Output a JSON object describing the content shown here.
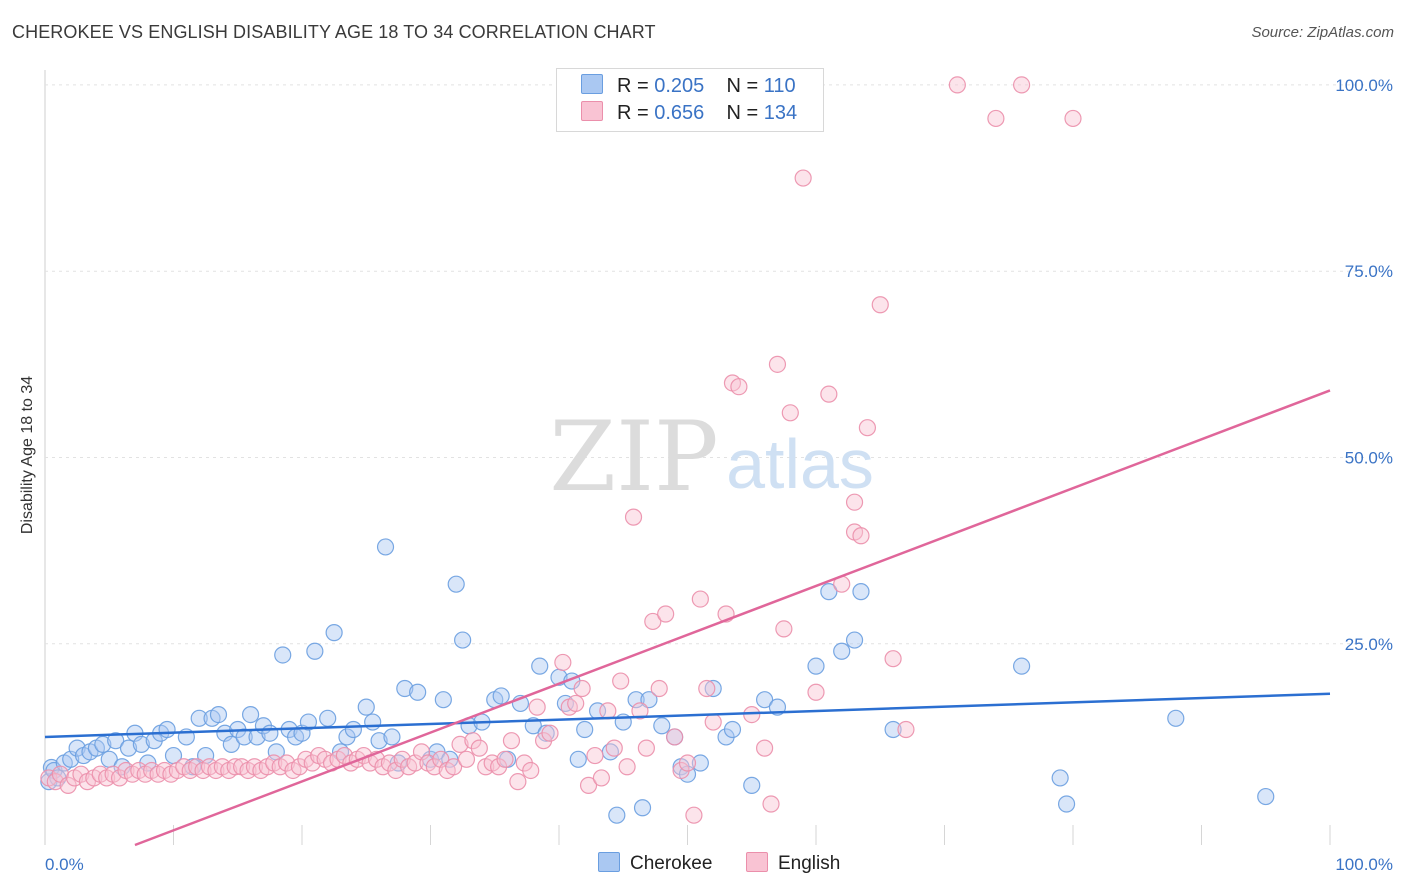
{
  "title": "CHEROKEE VS ENGLISH DISABILITY AGE 18 TO 34 CORRELATION CHART",
  "source": "Source: ZipAtlas.com",
  "watermark": {
    "zip": "ZIP",
    "atlas": "atlas"
  },
  "legend": {
    "r_label": "R =",
    "n_label": "N =",
    "rows": [
      {
        "r": "0.205",
        "n": "110",
        "fill": "#aac8f2",
        "stroke": "#6a9ee0"
      },
      {
        "r": "0.656",
        "n": "134",
        "fill": "#f9c3d3",
        "stroke": "#eb8fab"
      }
    ]
  },
  "bottom_legend": [
    "Cherokee",
    "English"
  ],
  "chart_data": {
    "type": "scatter",
    "title": "CHEROKEE VS ENGLISH DISABILITY AGE 18 TO 34 CORRELATION CHART",
    "xlabel": "",
    "ylabel": "Disability Age 18 to 34",
    "x_tick_labels": [
      "0.0%",
      "100.0%"
    ],
    "y_tick_labels": [
      "100.0%",
      "75.0%",
      "50.0%",
      "25.0%"
    ],
    "y_ticks": [
      100,
      75,
      50,
      25
    ],
    "xlim": [
      0,
      100
    ],
    "ylim": [
      -2,
      102
    ],
    "grid": true,
    "legend_position": "top-center",
    "series": [
      {
        "name": "Cherokee",
        "color": "#6a9ee0",
        "fill": "#aac8f2",
        "trend": {
          "x": [
            0,
            100
          ],
          "y": [
            12.5,
            18.3
          ]
        },
        "points": [
          [
            0.3,
            6.5
          ],
          [
            0.5,
            8.4
          ],
          [
            0.7,
            8.0
          ],
          [
            1,
            7
          ],
          [
            1.5,
            9
          ],
          [
            2,
            9.5
          ],
          [
            2.5,
            11
          ],
          [
            3,
            10
          ],
          [
            3.5,
            10.5
          ],
          [
            4,
            11
          ],
          [
            4.5,
            11.5
          ],
          [
            5,
            9.5
          ],
          [
            5.5,
            12
          ],
          [
            6,
            8.5
          ],
          [
            6.5,
            11
          ],
          [
            7,
            13
          ],
          [
            7.5,
            11.5
          ],
          [
            8,
            9
          ],
          [
            8.5,
            12
          ],
          [
            9,
            13
          ],
          [
            9.5,
            13.5
          ],
          [
            10,
            10
          ],
          [
            11,
            12.5
          ],
          [
            11.5,
            8.5
          ],
          [
            12,
            15
          ],
          [
            12.5,
            10
          ],
          [
            13,
            15
          ],
          [
            13.5,
            15.5
          ],
          [
            14,
            13
          ],
          [
            14.5,
            11.5
          ],
          [
            15,
            13.5
          ],
          [
            15.5,
            12.5
          ],
          [
            16,
            15.5
          ],
          [
            16.5,
            12.5
          ],
          [
            17,
            14
          ],
          [
            17.5,
            13
          ],
          [
            18,
            10.5
          ],
          [
            18.5,
            23.5
          ],
          [
            19,
            13.5
          ],
          [
            19.5,
            12.5
          ],
          [
            20,
            13
          ],
          [
            20.5,
            14.5
          ],
          [
            21,
            24
          ],
          [
            22,
            15
          ],
          [
            22.5,
            26.5
          ],
          [
            23,
            10.5
          ],
          [
            23.5,
            12.5
          ],
          [
            24,
            13.5
          ],
          [
            25,
            16.5
          ],
          [
            25.5,
            14.5
          ],
          [
            26,
            12
          ],
          [
            26.5,
            38
          ],
          [
            27,
            12.5
          ],
          [
            27.5,
            9
          ],
          [
            28,
            19
          ],
          [
            29,
            18.5
          ],
          [
            30,
            9.5
          ],
          [
            30.5,
            10.5
          ],
          [
            31,
            17.5
          ],
          [
            31.5,
            9.5
          ],
          [
            32,
            33
          ],
          [
            32.5,
            25.5
          ],
          [
            33,
            14
          ],
          [
            34,
            14.5
          ],
          [
            35,
            17.5
          ],
          [
            35.5,
            18
          ],
          [
            36,
            9.5
          ],
          [
            37,
            17
          ],
          [
            38,
            14
          ],
          [
            38.5,
            22
          ],
          [
            39,
            13
          ],
          [
            40,
            20.5
          ],
          [
            40.5,
            17
          ],
          [
            41,
            20
          ],
          [
            41.5,
            9.5
          ],
          [
            42,
            13.5
          ],
          [
            43,
            16
          ],
          [
            44,
            10.5
          ],
          [
            44.5,
            2
          ],
          [
            45,
            14.5
          ],
          [
            46,
            17.5
          ],
          [
            46.5,
            3
          ],
          [
            47,
            17.5
          ],
          [
            48,
            14
          ],
          [
            49,
            12.5
          ],
          [
            49.5,
            8.5
          ],
          [
            50,
            7.5
          ],
          [
            51,
            9
          ],
          [
            52,
            19
          ],
          [
            53,
            12.5
          ],
          [
            53.5,
            13.5
          ],
          [
            55,
            6
          ],
          [
            56,
            17.5
          ],
          [
            57,
            16.5
          ],
          [
            60,
            22
          ],
          [
            61,
            32
          ],
          [
            62,
            24
          ],
          [
            63,
            25.5
          ],
          [
            63.5,
            32
          ],
          [
            66,
            13.5
          ],
          [
            76,
            22
          ],
          [
            79,
            7
          ],
          [
            79.5,
            3.5
          ],
          [
            88,
            15
          ],
          [
            95,
            4.5
          ]
        ]
      },
      {
        "name": "English",
        "color": "#eb8fab",
        "fill": "#f9c3d3",
        "trend": {
          "x": [
            7,
            100
          ],
          "y": [
            -2,
            59
          ]
        },
        "points": [
          [
            0.3,
            7
          ],
          [
            0.8,
            6.5
          ],
          [
            1.2,
            7.5
          ],
          [
            1.8,
            6
          ],
          [
            2.3,
            7
          ],
          [
            2.8,
            7.5
          ],
          [
            3.3,
            6.5
          ],
          [
            3.8,
            7
          ],
          [
            4.3,
            7.5
          ],
          [
            4.8,
            7
          ],
          [
            5.3,
            7.5
          ],
          [
            5.8,
            7
          ],
          [
            6.3,
            8
          ],
          [
            6.8,
            7.5
          ],
          [
            7.3,
            8
          ],
          [
            7.8,
            7.5
          ],
          [
            8.3,
            8
          ],
          [
            8.8,
            7.5
          ],
          [
            9.3,
            8
          ],
          [
            9.8,
            7.5
          ],
          [
            10.3,
            8
          ],
          [
            10.8,
            8.5
          ],
          [
            11.3,
            8
          ],
          [
            11.8,
            8.5
          ],
          [
            12.3,
            8
          ],
          [
            12.8,
            8.5
          ],
          [
            13.3,
            8
          ],
          [
            13.8,
            8.5
          ],
          [
            14.3,
            8
          ],
          [
            14.8,
            8.5
          ],
          [
            15.3,
            8.5
          ],
          [
            15.8,
            8
          ],
          [
            16.3,
            8.5
          ],
          [
            16.8,
            8
          ],
          [
            17.3,
            8.5
          ],
          [
            17.8,
            9
          ],
          [
            18.3,
            8.5
          ],
          [
            18.8,
            9
          ],
          [
            19.3,
            8
          ],
          [
            19.8,
            8.5
          ],
          [
            20.3,
            9.5
          ],
          [
            20.8,
            9
          ],
          [
            21.3,
            10
          ],
          [
            21.8,
            9.5
          ],
          [
            22.3,
            9
          ],
          [
            22.8,
            9.5
          ],
          [
            23.3,
            10
          ],
          [
            23.8,
            9
          ],
          [
            24.3,
            9.5
          ],
          [
            24.8,
            10
          ],
          [
            25.3,
            9
          ],
          [
            25.8,
            9.5
          ],
          [
            26.3,
            8.5
          ],
          [
            26.8,
            9
          ],
          [
            27.3,
            8
          ],
          [
            27.8,
            9.5
          ],
          [
            28.3,
            8.5
          ],
          [
            28.8,
            9
          ],
          [
            29.3,
            10.5
          ],
          [
            29.8,
            9
          ],
          [
            30.3,
            8.5
          ],
          [
            30.8,
            9.5
          ],
          [
            31.3,
            8
          ],
          [
            31.8,
            8.5
          ],
          [
            32.3,
            11.5
          ],
          [
            32.8,
            9.5
          ],
          [
            33.3,
            12
          ],
          [
            33.8,
            11
          ],
          [
            34.3,
            8.5
          ],
          [
            34.8,
            9
          ],
          [
            35.3,
            8.5
          ],
          [
            35.8,
            9.5
          ],
          [
            36.3,
            12
          ],
          [
            36.8,
            6.5
          ],
          [
            37.3,
            9
          ],
          [
            37.8,
            8
          ],
          [
            38.3,
            16.5
          ],
          [
            38.8,
            12
          ],
          [
            39.3,
            13
          ],
          [
            40.3,
            22.5
          ],
          [
            40.8,
            16.5
          ],
          [
            41.3,
            17
          ],
          [
            41.8,
            19
          ],
          [
            42.3,
            6
          ],
          [
            42.8,
            10
          ],
          [
            43.3,
            7
          ],
          [
            43.8,
            16
          ],
          [
            44.3,
            11
          ],
          [
            44.8,
            20
          ],
          [
            45.3,
            8.5
          ],
          [
            45.8,
            42
          ],
          [
            46.3,
            16
          ],
          [
            46.8,
            11
          ],
          [
            47.3,
            28
          ],
          [
            47.8,
            19
          ],
          [
            48.3,
            29
          ],
          [
            49,
            12.5
          ],
          [
            49.5,
            8
          ],
          [
            50,
            9
          ],
          [
            50.5,
            2
          ],
          [
            51,
            31
          ],
          [
            51.5,
            19
          ],
          [
            52,
            14.5
          ],
          [
            53,
            29
          ],
          [
            53.5,
            60
          ],
          [
            54,
            59.5
          ],
          [
            55,
            15.5
          ],
          [
            56,
            11
          ],
          [
            56.5,
            3.5
          ],
          [
            57,
            62.5
          ],
          [
            57.5,
            27
          ],
          [
            58,
            56
          ],
          [
            59,
            87.5
          ],
          [
            60,
            18.5
          ],
          [
            61,
            58.5
          ],
          [
            62,
            33
          ],
          [
            63,
            40
          ],
          [
            63.5,
            39.5
          ],
          [
            64,
            54
          ],
          [
            65,
            70.5
          ],
          [
            66,
            23
          ],
          [
            67,
            13.5
          ],
          [
            71,
            100
          ],
          [
            74,
            95.5
          ],
          [
            76,
            100
          ],
          [
            80,
            95.5
          ],
          [
            63,
            44
          ]
        ]
      }
    ]
  }
}
